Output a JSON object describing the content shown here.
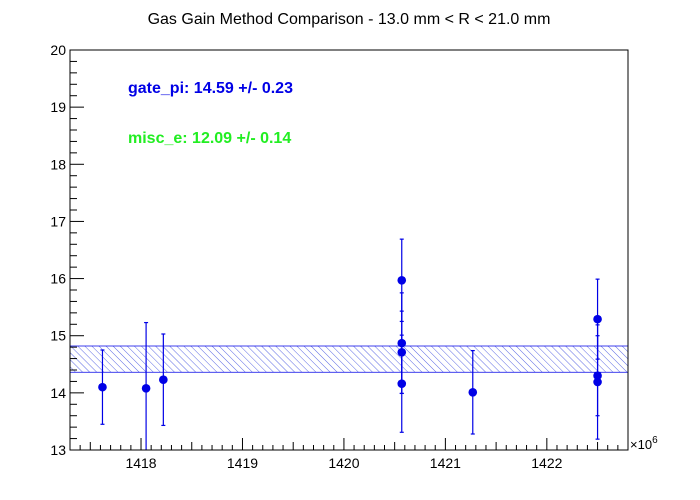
{
  "chart_data": {
    "type": "scatter",
    "title": "Gas Gain Method Comparison - 13.0 mm < R < 21.0 mm",
    "xlabel": "",
    "ylabel": "",
    "x_exponent_label": "×10",
    "x_exponent": "6",
    "xlim": [
      1417.3,
      1422.8
    ],
    "ylim": [
      13,
      20
    ],
    "x_ticks": [
      "1418",
      "1419",
      "1420",
      "1421",
      "1422"
    ],
    "y_ticks": [
      "13",
      "14",
      "15",
      "16",
      "17",
      "18",
      "19",
      "20"
    ],
    "grid": false,
    "series": [
      {
        "name": "gate_pi",
        "color": "#0000e6",
        "points": [
          {
            "x": 1417.62,
            "y": 14.1,
            "err": 0.65
          },
          {
            "x": 1418.05,
            "y": 14.08,
            "err": 1.15
          },
          {
            "x": 1418.22,
            "y": 14.23,
            "err": 0.8
          },
          {
            "x": 1420.57,
            "y": 15.97,
            "err": 0.72
          },
          {
            "x": 1420.57,
            "y": 14.87,
            "err": 0.88
          },
          {
            "x": 1420.57,
            "y": 14.71,
            "err": 0.72
          },
          {
            "x": 1420.57,
            "y": 14.16,
            "err": 0.85
          },
          {
            "x": 1421.27,
            "y": 14.01,
            "err": 0.73
          },
          {
            "x": 1422.5,
            "y": 15.29,
            "err": 0.7
          },
          {
            "x": 1422.5,
            "y": 14.3,
            "err": 0.7
          },
          {
            "x": 1422.5,
            "y": 14.19,
            "err": 1.0
          }
        ]
      }
    ],
    "band": {
      "center": 14.59,
      "half_width": 0.23,
      "color": "#0000e6"
    },
    "annotations": [
      {
        "text": "gate_pi: 14.59 +/- 0.23",
        "color": "#0000e6"
      },
      {
        "text": "misc_e: 12.09 +/- 0.14",
        "color": "#22ee22"
      }
    ]
  }
}
